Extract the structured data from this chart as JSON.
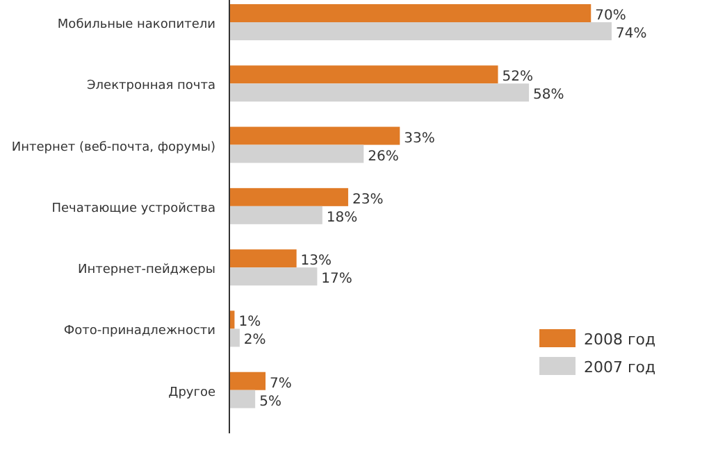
{
  "chart_data": {
    "type": "bar",
    "orientation": "horizontal",
    "legend": "right",
    "categories": [
      "Мобильные накопители",
      "Электронная почта",
      "Интернет (веб-почта, форумы)",
      "Печатающие устройства",
      "Интернет-пейджеры",
      "Фото-принадлежности",
      "Другое"
    ],
    "series": [
      {
        "name": "2008 год",
        "color": "#e07b27",
        "values": [
          70,
          52,
          33,
          23,
          13,
          1,
          7
        ],
        "value_labels": [
          "70%",
          "52%",
          "33%",
          "23%",
          "13%",
          "1%",
          "7%"
        ]
      },
      {
        "name": "2007 год",
        "color": "#d2d2d2",
        "values": [
          74,
          58,
          26,
          18,
          17,
          2,
          5
        ],
        "value_labels": [
          "74%",
          "58%",
          "26%",
          "18%",
          "17%",
          "2%",
          "5%"
        ]
      }
    ]
  }
}
